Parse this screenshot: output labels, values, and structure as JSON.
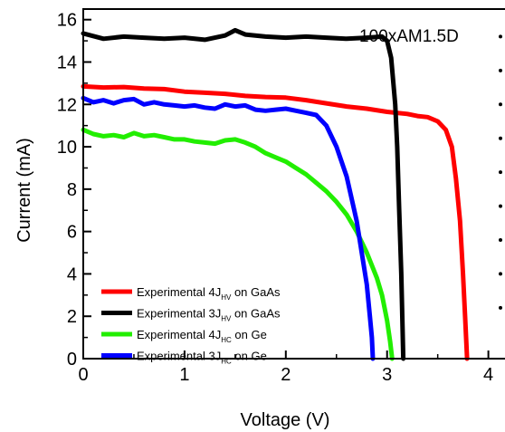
{
  "chart_data": {
    "type": "line",
    "title": "",
    "xlabel": "Voltage (V)",
    "ylabel": "Current (mA)",
    "xlim": [
      0,
      4.2
    ],
    "ylim": [
      0,
      16.5
    ],
    "xticks": [
      0,
      1,
      2,
      3,
      4
    ],
    "yticks": [
      0,
      2,
      4,
      6,
      8,
      10,
      12,
      14,
      16
    ],
    "annotation": "100xAM1.5D",
    "legend_position": "lower-left",
    "grid": false,
    "series": [
      {
        "label_prefix": "Experimental 4J",
        "label_sub": "HV",
        "label_suffix": " on GaAs",
        "color": "#ff0000",
        "points": [
          [
            0,
            12.85
          ],
          [
            0.2,
            12.8
          ],
          [
            0.4,
            12.82
          ],
          [
            0.6,
            12.75
          ],
          [
            0.8,
            12.72
          ],
          [
            1.0,
            12.6
          ],
          [
            1.2,
            12.55
          ],
          [
            1.4,
            12.5
          ],
          [
            1.6,
            12.4
          ],
          [
            1.8,
            12.35
          ],
          [
            2.0,
            12.32
          ],
          [
            2.2,
            12.2
          ],
          [
            2.4,
            12.05
          ],
          [
            2.6,
            11.9
          ],
          [
            2.8,
            11.8
          ],
          [
            3.0,
            11.65
          ],
          [
            3.2,
            11.55
          ],
          [
            3.3,
            11.45
          ],
          [
            3.4,
            11.4
          ],
          [
            3.5,
            11.2
          ],
          [
            3.58,
            10.8
          ],
          [
            3.64,
            10.0
          ],
          [
            3.68,
            8.5
          ],
          [
            3.72,
            6.5
          ],
          [
            3.75,
            4.0
          ],
          [
            3.77,
            2.0
          ],
          [
            3.79,
            0.0
          ]
        ]
      },
      {
        "label_prefix": "Experimental 3J",
        "label_sub": "HV",
        "label_suffix": " on GaAs",
        "color": "#000000",
        "points": [
          [
            0,
            15.35
          ],
          [
            0.2,
            15.1
          ],
          [
            0.4,
            15.2
          ],
          [
            0.6,
            15.15
          ],
          [
            0.8,
            15.1
          ],
          [
            1.0,
            15.15
          ],
          [
            1.2,
            15.05
          ],
          [
            1.4,
            15.25
          ],
          [
            1.5,
            15.5
          ],
          [
            1.6,
            15.3
          ],
          [
            1.8,
            15.2
          ],
          [
            2.0,
            15.15
          ],
          [
            2.2,
            15.2
          ],
          [
            2.4,
            15.15
          ],
          [
            2.6,
            15.1
          ],
          [
            2.8,
            15.15
          ],
          [
            2.95,
            15.2
          ],
          [
            3.0,
            15.0
          ],
          [
            3.04,
            14.2
          ],
          [
            3.08,
            12.0
          ],
          [
            3.1,
            10.0
          ],
          [
            3.12,
            7.0
          ],
          [
            3.14,
            4.0
          ],
          [
            3.15,
            2.0
          ],
          [
            3.16,
            0.0
          ]
        ]
      },
      {
        "label_prefix": "Experimental 4J",
        "label_sub": "HC",
        "label_suffix": " on Ge",
        "color": "#22ee00",
        "points": [
          [
            0,
            10.8
          ],
          [
            0.1,
            10.6
          ],
          [
            0.2,
            10.5
          ],
          [
            0.3,
            10.55
          ],
          [
            0.4,
            10.45
          ],
          [
            0.5,
            10.65
          ],
          [
            0.6,
            10.5
          ],
          [
            0.7,
            10.55
          ],
          [
            0.8,
            10.45
          ],
          [
            0.9,
            10.35
          ],
          [
            1.0,
            10.35
          ],
          [
            1.1,
            10.25
          ],
          [
            1.2,
            10.2
          ],
          [
            1.3,
            10.15
          ],
          [
            1.4,
            10.3
          ],
          [
            1.5,
            10.35
          ],
          [
            1.6,
            10.2
          ],
          [
            1.7,
            10.0
          ],
          [
            1.8,
            9.7
          ],
          [
            1.9,
            9.5
          ],
          [
            2.0,
            9.3
          ],
          [
            2.1,
            9.0
          ],
          [
            2.2,
            8.7
          ],
          [
            2.3,
            8.3
          ],
          [
            2.4,
            7.9
          ],
          [
            2.5,
            7.4
          ],
          [
            2.6,
            6.8
          ],
          [
            2.7,
            6.0
          ],
          [
            2.8,
            5.0
          ],
          [
            2.9,
            3.8
          ],
          [
            2.95,
            3.0
          ],
          [
            3.0,
            1.8
          ],
          [
            3.03,
            0.8
          ],
          [
            3.05,
            0.0
          ]
        ]
      },
      {
        "label_prefix": "Experimental 3J",
        "label_sub": "HC",
        "label_suffix": " on Ge",
        "color": "#0000ff",
        "points": [
          [
            0,
            12.3
          ],
          [
            0.1,
            12.1
          ],
          [
            0.2,
            12.2
          ],
          [
            0.3,
            12.05
          ],
          [
            0.4,
            12.2
          ],
          [
            0.5,
            12.25
          ],
          [
            0.6,
            12.0
          ],
          [
            0.7,
            12.1
          ],
          [
            0.8,
            12.0
          ],
          [
            0.9,
            11.95
          ],
          [
            1.0,
            11.9
          ],
          [
            1.1,
            11.95
          ],
          [
            1.2,
            11.85
          ],
          [
            1.3,
            11.8
          ],
          [
            1.4,
            12.0
          ],
          [
            1.5,
            11.9
          ],
          [
            1.6,
            11.95
          ],
          [
            1.7,
            11.75
          ],
          [
            1.8,
            11.7
          ],
          [
            1.9,
            11.75
          ],
          [
            2.0,
            11.8
          ],
          [
            2.1,
            11.7
          ],
          [
            2.2,
            11.6
          ],
          [
            2.3,
            11.5
          ],
          [
            2.4,
            11.0
          ],
          [
            2.5,
            10.0
          ],
          [
            2.6,
            8.6
          ],
          [
            2.7,
            6.5
          ],
          [
            2.75,
            5.0
          ],
          [
            2.8,
            3.5
          ],
          [
            2.83,
            2.0
          ],
          [
            2.85,
            1.0
          ],
          [
            2.86,
            0.0
          ]
        ]
      }
    ]
  }
}
